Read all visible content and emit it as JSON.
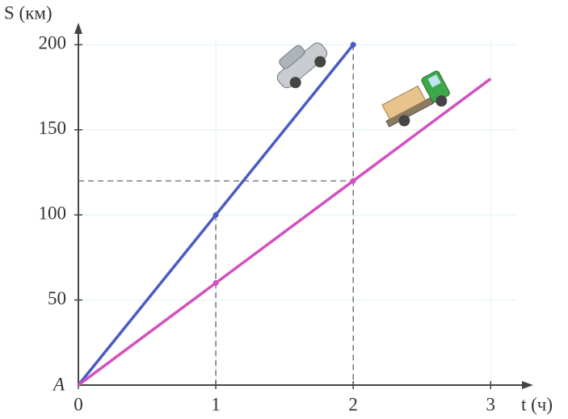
{
  "chart_data": {
    "type": "line",
    "x_label": "t (ч)",
    "y_label": "S (км)",
    "origin_label": "A",
    "x": [
      0,
      1,
      2,
      3
    ],
    "series": [
      {
        "color": "#4a5cc4",
        "values": [
          0,
          100,
          200,
          null
        ]
      },
      {
        "color": "#d44fbf",
        "values": [
          0,
          60,
          120,
          180
        ]
      }
    ],
    "xlim": [
      0,
      3.31
    ],
    "ylim": [
      0,
      213
    ],
    "xticks": [
      0,
      1,
      2,
      3
    ],
    "yticks": [
      50,
      100,
      150,
      200
    ],
    "grid": true
  }
}
